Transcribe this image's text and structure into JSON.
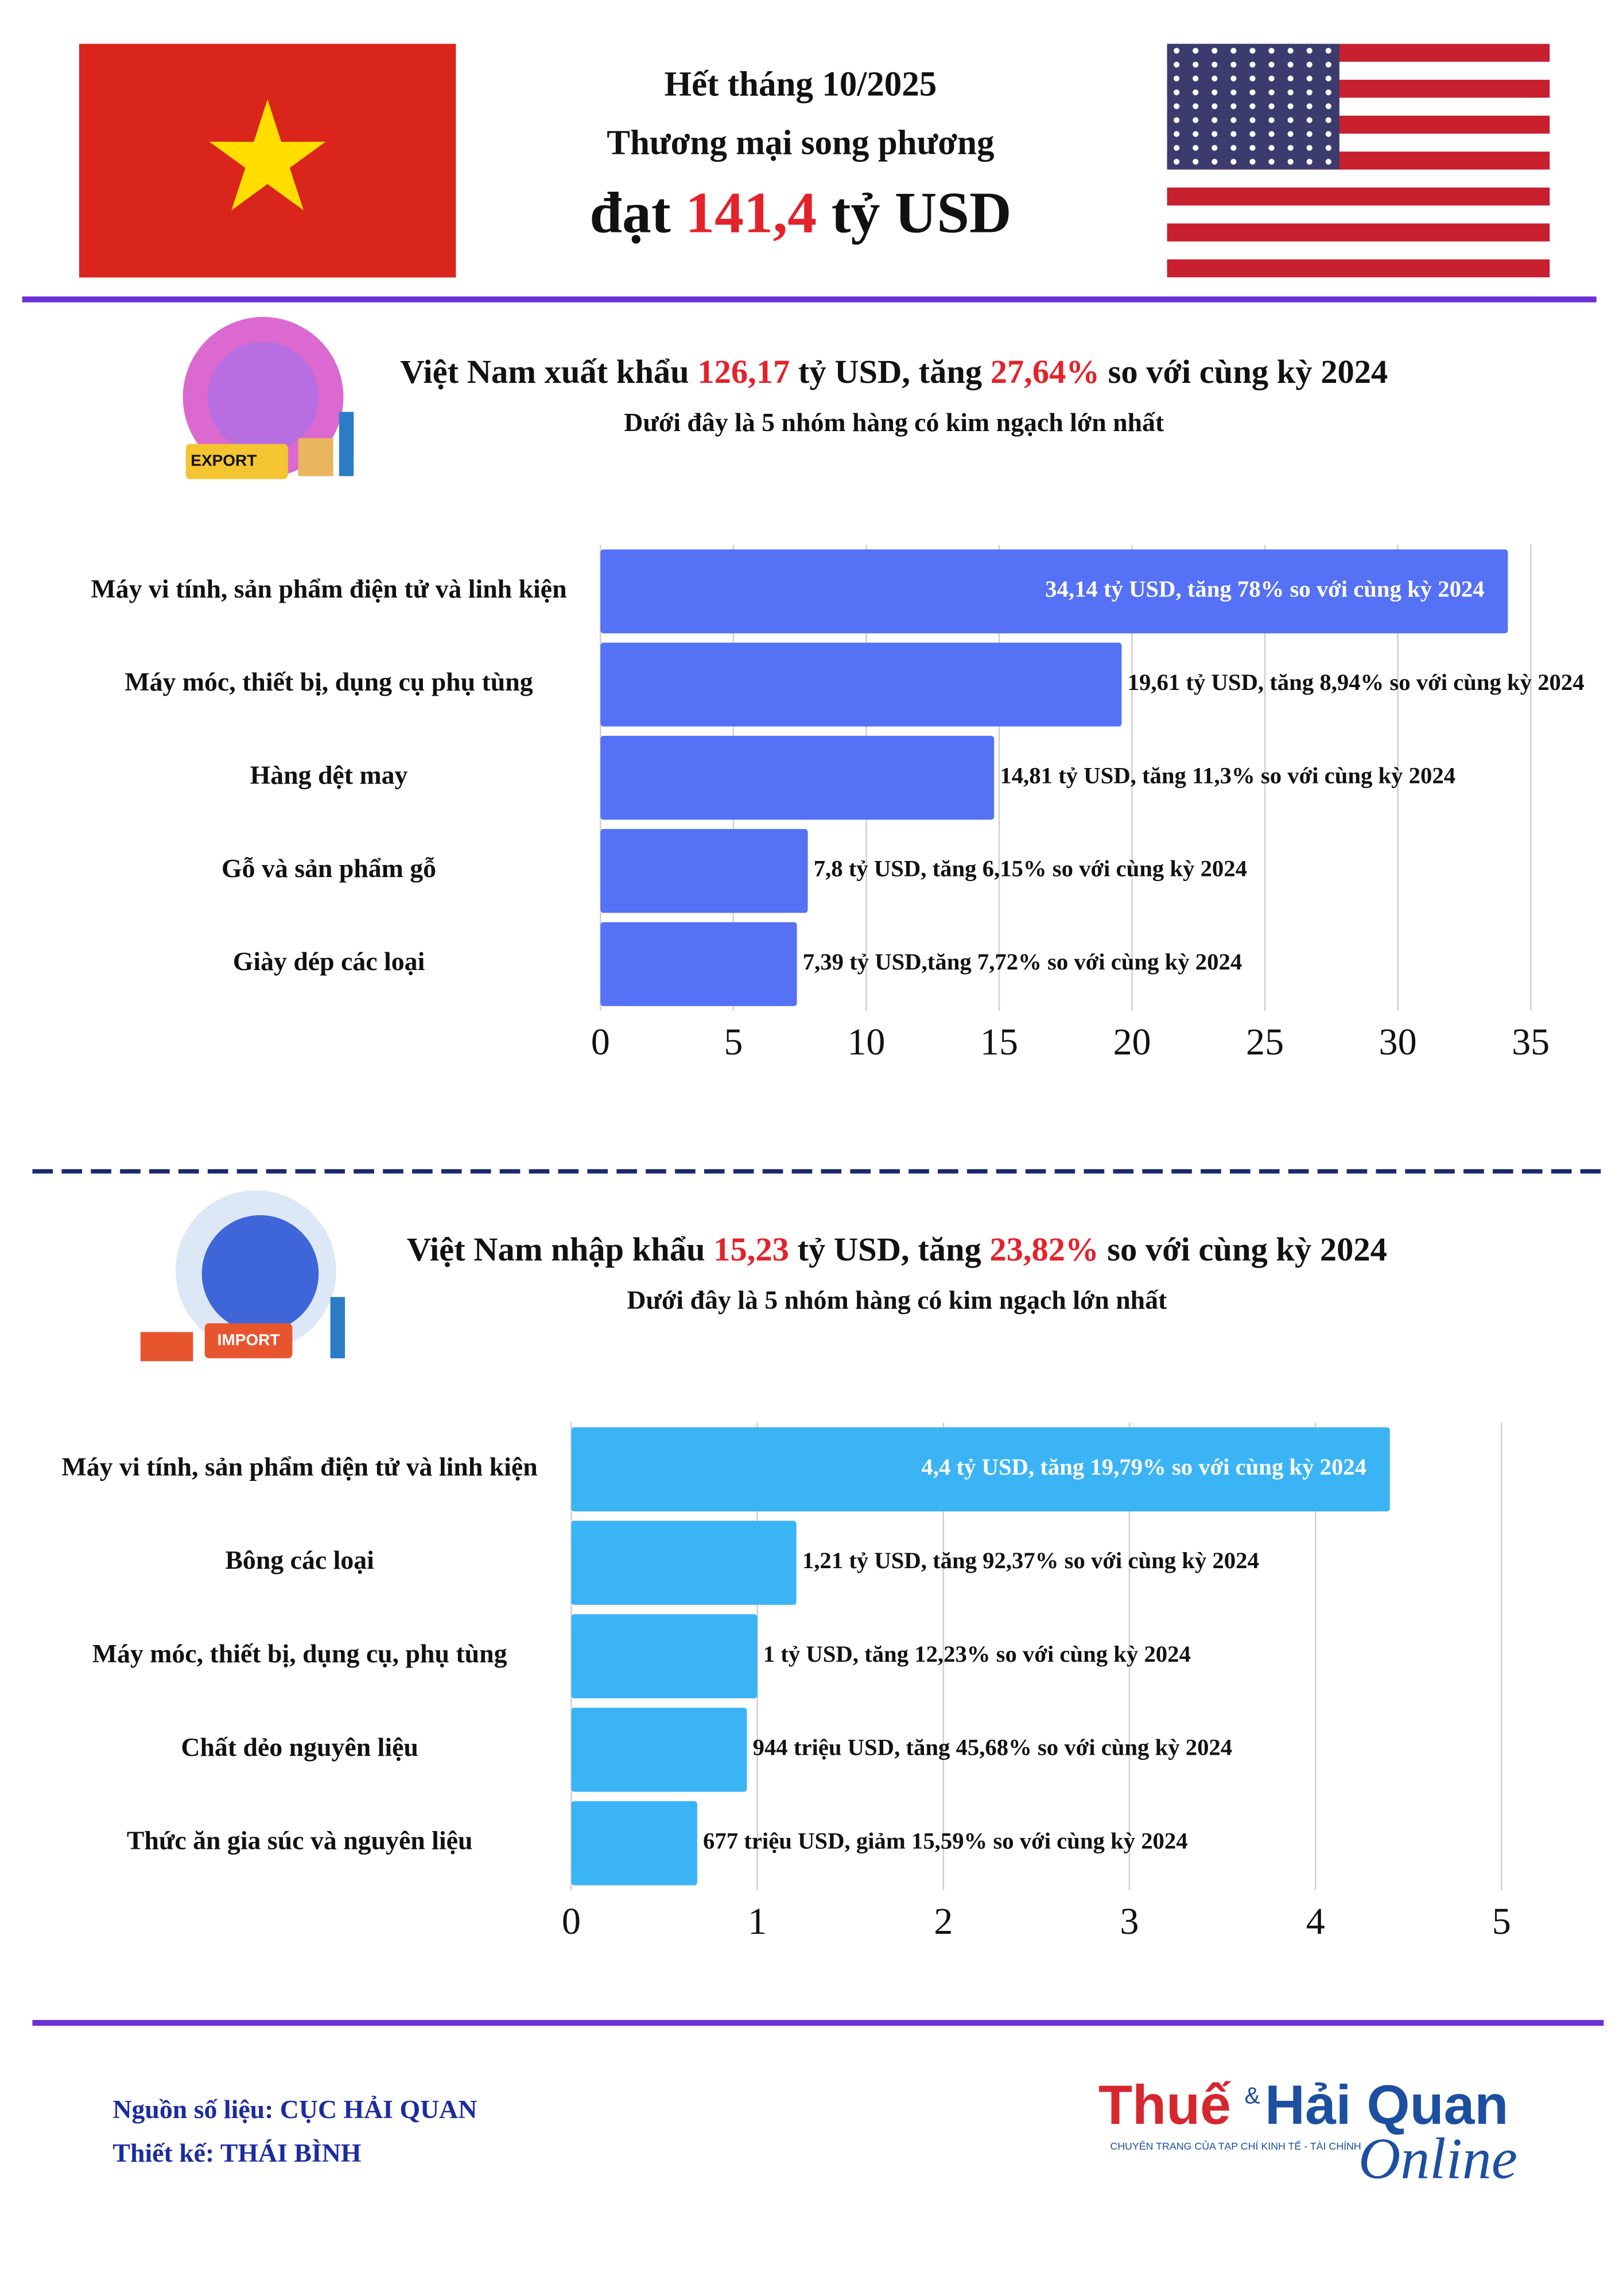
{
  "header": {
    "line1": "Hết tháng 10/2025",
    "line2": "Thương mại song phương",
    "line3": [
      "đạt",
      "141,4",
      "tỷ USD"
    ]
  },
  "chart_data": [
    {
      "type": "bar",
      "orientation": "horizontal",
      "title": [
        "Việt Nam xuất khẩu",
        "126,17",
        "tỷ USD, tăng",
        "27,64%",
        "so với cùng kỳ 2024"
      ],
      "subtitle": "Dưới đây là 5 nhóm hàng có kim ngạch lớn nhất",
      "icon_label": "EXPORT",
      "categories": [
        "Máy vi tính, sản phẩm điện tử và linh kiện",
        "Máy móc, thiết bị, dụng cụ phụ tùng",
        "Hàng dệt may",
        "Gỗ và sản phẩm gỗ",
        "Giày dép các loại"
      ],
      "values": [
        34.14,
        19.61,
        14.81,
        7.8,
        7.39
      ],
      "value_labels": [
        "34,14 tỷ USD, tăng 78% so với cùng kỳ 2024",
        "19,61 tỷ USD, tăng 8,94% so với cùng kỳ 2024",
        "14,81 tỷ USD, tăng 11,3% so với cùng kỳ 2024",
        "7,8 tỷ USD, tăng 6,15% so với cùng kỳ 2024",
        "7,39 tỷ USD,tăng 7,72% so với cùng kỳ 2024"
      ],
      "color": "#5571f6",
      "xlim": [
        0,
        35
      ],
      "xticks": [
        0,
        5,
        10,
        15,
        20,
        25,
        30,
        35
      ],
      "grid": true
    },
    {
      "type": "bar",
      "orientation": "horizontal",
      "title": [
        "Việt Nam nhập khẩu",
        "15,23",
        "tỷ USD, tăng",
        "23,82%",
        "so với cùng kỳ 2024"
      ],
      "subtitle": "Dưới đây là 5 nhóm hàng có kim ngạch lớn nhất",
      "icon_label": "IMPORT",
      "categories": [
        "Máy vi tính, sản phẩm điện tử và linh kiện",
        "Bông các loại",
        "Máy móc, thiết bị, dụng cụ, phụ tùng",
        "Chất dẻo nguyên liệu",
        "Thức ăn gia súc và nguyên liệu"
      ],
      "values": [
        4.4,
        1.21,
        1,
        0.944,
        0.677
      ],
      "value_labels": [
        "4,4 tỷ USD, tăng 19,79% so với cùng kỳ 2024",
        "1,21 tỷ USD, tăng 92,37% so với cùng kỳ 2024",
        "1 tỷ USD, tăng 12,23% so với cùng kỳ 2024",
        "944 triệu USD, tăng 45,68% so với cùng kỳ 2024",
        "677 triệu USD, giảm 15,59% so với cùng kỳ 2024"
      ],
      "color": "#3bb4f6",
      "xlim": [
        0,
        5
      ],
      "xticks": [
        0,
        1,
        2,
        3,
        4,
        5
      ],
      "grid": true
    }
  ],
  "footer": {
    "source": "Nguồn số liệu: CỤC HẢI QUAN",
    "design": "Thiết kế: THÁI BÌNH",
    "logo": [
      "Thuế",
      "&",
      "Hải Quan",
      "Online"
    ],
    "tagline": "CHUYÊN TRANG CỦA TẠP CHÍ KINH TẾ - TÀI CHÍNH"
  }
}
